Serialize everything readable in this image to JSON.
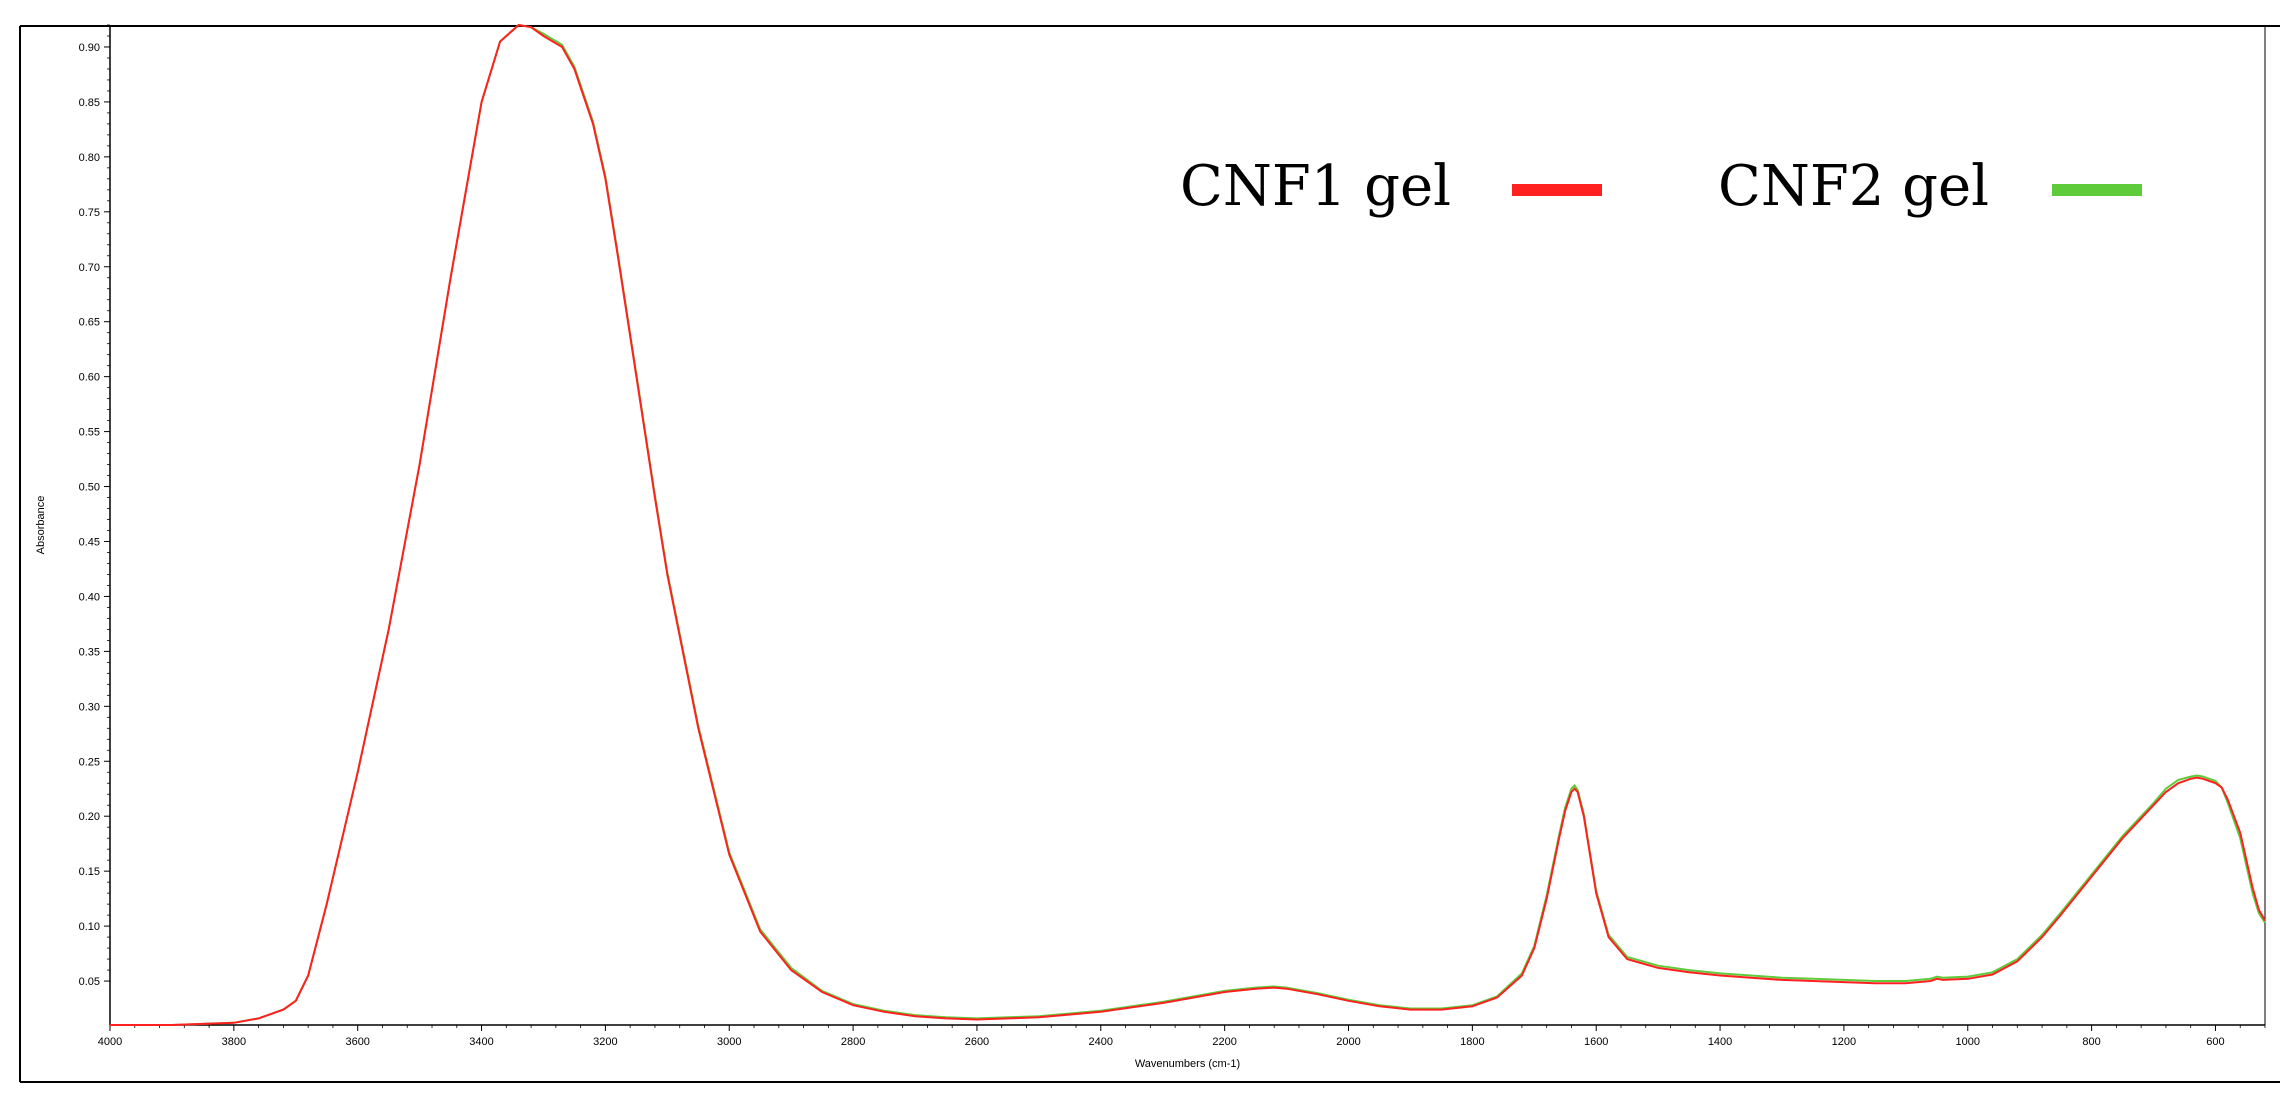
{
  "chart_data": {
    "type": "line",
    "title": "",
    "xlabel": "Wavenumbers (cm-1)",
    "ylabel": "Absorbance",
    "xlim": [
      4000,
      520
    ],
    "ylim": [
      0.01,
      0.92
    ],
    "x_ticks": [
      "4000",
      "3800",
      "3600",
      "3400",
      "3200",
      "3000",
      "2800",
      "2600",
      "2400",
      "2200",
      "2000",
      "1800",
      "1600",
      "1400",
      "1200",
      "1000",
      "800",
      "600"
    ],
    "y_ticks": [
      "0.05",
      "0.10",
      "0.15",
      "0.20",
      "0.25",
      "0.30",
      "0.35",
      "0.40",
      "0.45",
      "0.50",
      "0.55",
      "0.60",
      "0.65",
      "0.70",
      "0.75",
      "0.80",
      "0.85",
      "0.90"
    ],
    "legend_position": "top-right",
    "grid": false,
    "series": [
      {
        "name": "CNF1 gel",
        "color": "#ff2020",
        "x": [
          4000,
          3900,
          3800,
          3760,
          3720,
          3700,
          3680,
          3650,
          3600,
          3550,
          3500,
          3450,
          3400,
          3370,
          3340,
          3320,
          3300,
          3270,
          3250,
          3220,
          3200,
          3180,
          3150,
          3120,
          3100,
          3050,
          3000,
          2950,
          2900,
          2850,
          2800,
          2750,
          2700,
          2650,
          2600,
          2550,
          2500,
          2400,
          2300,
          2200,
          2150,
          2120,
          2100,
          2050,
          2000,
          1950,
          1900,
          1850,
          1800,
          1760,
          1720,
          1700,
          1680,
          1660,
          1650,
          1640,
          1635,
          1630,
          1620,
          1610,
          1600,
          1580,
          1550,
          1500,
          1450,
          1400,
          1350,
          1300,
          1250,
          1200,
          1150,
          1100,
          1060,
          1050,
          1040,
          1000,
          960,
          920,
          880,
          850,
          800,
          750,
          700,
          680,
          660,
          640,
          630,
          620,
          610,
          600,
          590,
          580,
          570,
          560,
          550,
          540,
          530,
          520
        ],
        "values": [
          0.01,
          0.01,
          0.012,
          0.016,
          0.024,
          0.032,
          0.055,
          0.12,
          0.24,
          0.37,
          0.52,
          0.69,
          0.85,
          0.905,
          0.92,
          0.918,
          0.91,
          0.9,
          0.88,
          0.83,
          0.78,
          0.71,
          0.6,
          0.49,
          0.42,
          0.28,
          0.165,
          0.095,
          0.06,
          0.04,
          0.028,
          0.022,
          0.018,
          0.016,
          0.015,
          0.016,
          0.017,
          0.022,
          0.03,
          0.04,
          0.043,
          0.044,
          0.043,
          0.038,
          0.032,
          0.027,
          0.024,
          0.024,
          0.027,
          0.035,
          0.055,
          0.08,
          0.125,
          0.18,
          0.205,
          0.222,
          0.225,
          0.222,
          0.2,
          0.165,
          0.13,
          0.09,
          0.07,
          0.062,
          0.058,
          0.055,
          0.053,
          0.051,
          0.05,
          0.049,
          0.048,
          0.048,
          0.05,
          0.052,
          0.051,
          0.052,
          0.056,
          0.068,
          0.09,
          0.11,
          0.145,
          0.18,
          0.21,
          0.222,
          0.23,
          0.234,
          0.235,
          0.234,
          0.232,
          0.23,
          0.226,
          0.215,
          0.2,
          0.185,
          0.16,
          0.135,
          0.115,
          0.105
        ]
      },
      {
        "name": "CNF2 gel",
        "color": "#5ecb3a",
        "x": [
          4000,
          3900,
          3800,
          3760,
          3720,
          3700,
          3680,
          3650,
          3600,
          3550,
          3500,
          3450,
          3400,
          3370,
          3340,
          3320,
          3300,
          3270,
          3250,
          3220,
          3200,
          3180,
          3150,
          3120,
          3100,
          3050,
          3000,
          2950,
          2900,
          2850,
          2800,
          2750,
          2700,
          2650,
          2600,
          2550,
          2500,
          2400,
          2300,
          2200,
          2150,
          2120,
          2100,
          2050,
          2000,
          1950,
          1900,
          1850,
          1800,
          1760,
          1720,
          1700,
          1680,
          1660,
          1650,
          1640,
          1635,
          1630,
          1620,
          1610,
          1600,
          1580,
          1550,
          1500,
          1450,
          1400,
          1350,
          1300,
          1250,
          1200,
          1150,
          1100,
          1060,
          1050,
          1040,
          1000,
          960,
          920,
          880,
          850,
          800,
          750,
          700,
          680,
          660,
          640,
          630,
          620,
          610,
          600,
          590,
          580,
          570,
          560,
          550,
          540,
          530,
          520
        ],
        "values": [
          0.01,
          0.01,
          0.012,
          0.016,
          0.024,
          0.032,
          0.055,
          0.12,
          0.24,
          0.37,
          0.52,
          0.69,
          0.85,
          0.905,
          0.92,
          0.918,
          0.912,
          0.902,
          0.882,
          0.832,
          0.782,
          0.712,
          0.602,
          0.492,
          0.422,
          0.282,
          0.167,
          0.097,
          0.062,
          0.041,
          0.029,
          0.023,
          0.019,
          0.017,
          0.016,
          0.017,
          0.018,
          0.023,
          0.031,
          0.041,
          0.044,
          0.045,
          0.044,
          0.039,
          0.033,
          0.028,
          0.025,
          0.025,
          0.028,
          0.036,
          0.057,
          0.082,
          0.128,
          0.183,
          0.208,
          0.225,
          0.228,
          0.224,
          0.202,
          0.167,
          0.132,
          0.092,
          0.072,
          0.064,
          0.06,
          0.057,
          0.055,
          0.053,
          0.052,
          0.051,
          0.05,
          0.05,
          0.052,
          0.054,
          0.053,
          0.054,
          0.058,
          0.07,
          0.092,
          0.112,
          0.147,
          0.182,
          0.212,
          0.225,
          0.233,
          0.236,
          0.237,
          0.236,
          0.234,
          0.232,
          0.226,
          0.212,
          0.196,
          0.18,
          0.155,
          0.13,
          0.112,
          0.103
        ]
      }
    ]
  }
}
